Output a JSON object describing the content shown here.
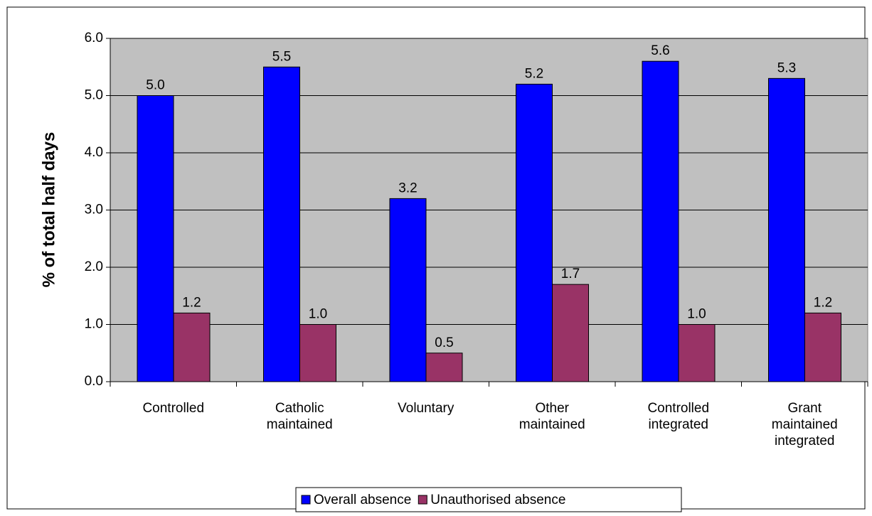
{
  "chart_data": {
    "type": "bar",
    "y_label": "% of total half days",
    "categories": [
      "Controlled",
      "Catholic maintained",
      "Voluntary",
      "Other maintained",
      "Controlled integrated",
      "Grant maintained integrated"
    ],
    "series": [
      {
        "name": "Overall absence",
        "color": "#0000ff",
        "values": [
          5,
          5.5,
          3.2,
          5.2,
          5.6,
          5.3
        ],
        "value_labels": [
          "5.0",
          "5.5",
          "3.2",
          "5.2",
          "5.6",
          "5.3"
        ]
      },
      {
        "name": "Unauthorised absence",
        "color": "#993366",
        "values": [
          1.2,
          1,
          0.5,
          1.7,
          1,
          1.2
        ],
        "value_labels": [
          "1.2",
          "1.0",
          "0.5",
          "1.7",
          "1.0",
          "1.2"
        ]
      }
    ],
    "ylim": [
      0,
      6
    ],
    "yticks": [
      {
        "value": 0,
        "label": "0.0"
      },
      {
        "value": 1,
        "label": "1.0"
      },
      {
        "value": 2,
        "label": "2.0"
      },
      {
        "value": 3,
        "label": "3.0"
      },
      {
        "value": 4,
        "label": "4.0"
      },
      {
        "value": 5,
        "label": "5.0"
      },
      {
        "value": 6,
        "label": "6.0"
      }
    ],
    "grid": true,
    "plot_background": "#c0c0c0",
    "legend": "bottom"
  }
}
